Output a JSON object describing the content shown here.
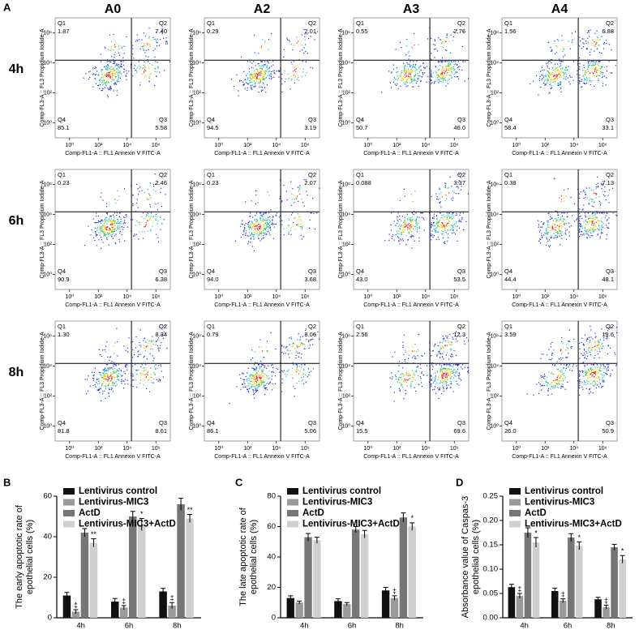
{
  "flow": {
    "label": "A",
    "columns": [
      "A0",
      "A2",
      "A3",
      "A4"
    ],
    "rows": [
      "4h",
      "6h",
      "8h"
    ],
    "x_label": "Comp-FL1-A :: FL1 Annexin V FITC-A",
    "y_label": "Comp-FL3-A :: FL3 Propidium Iodide-A",
    "log_scale": true,
    "xlim": [
      0.1,
      10000000
    ],
    "ylim": [
      0.1,
      10000000
    ],
    "xticks": [
      {
        "value": 1,
        "label": "10⁰"
      },
      {
        "value": 100,
        "label": "10²"
      },
      {
        "value": 10000,
        "label": "10⁴"
      },
      {
        "value": 1000000,
        "label": "10⁶"
      }
    ],
    "yticks": [
      {
        "value": 1,
        "label": "10⁰"
      },
      {
        "value": 100,
        "label": "10²"
      },
      {
        "value": 10000,
        "label": "10⁴"
      },
      {
        "value": 1000000,
        "label": "10⁶"
      }
    ],
    "gate": [
      20000,
      15000
    ],
    "quadrant_names": [
      "Q1",
      "Q2",
      "Q3",
      "Q4"
    ],
    "panels": [
      [
        {
          "values": [
            1.87,
            7.4,
            5.58,
            85.1
          ],
          "value_labels": [
            "1.87",
            "7.40",
            "5.58",
            "85.1"
          ]
        },
        {
          "values": [
            0.29,
            2.01,
            3.19,
            94.5
          ]
        },
        {
          "values": [
            0.55,
            2.76,
            46,
            50.7
          ],
          "value_labels": [
            "0.55",
            "2.76",
            "46.0",
            "50.7"
          ]
        },
        {
          "values": [
            1.56,
            6.88,
            33.1,
            58.4
          ]
        }
      ],
      [
        {
          "values": [
            0.23,
            2.46,
            6.38,
            90.9
          ]
        },
        {
          "values": [
            0.23,
            2.07,
            3.68,
            94
          ],
          "value_labels": [
            "0.23",
            "2.07",
            "3.68",
            "94.0"
          ]
        },
        {
          "values": [
            0.088,
            3.37,
            53.5,
            43
          ],
          "value_labels": [
            "0.088",
            "3.37",
            "53.5",
            "43.0"
          ]
        },
        {
          "values": [
            0.38,
            7.13,
            48.1,
            44.4
          ]
        }
      ],
      [
        {
          "values": [
            1.3,
            8.34,
            8.61,
            81.8
          ],
          "value_labels": [
            "1.30",
            "8.34",
            "8.61",
            "81.8"
          ]
        },
        {
          "values": [
            0.79,
            8.06,
            5.06,
            86.1
          ]
        },
        {
          "values": [
            2.56,
            12.3,
            69.6,
            15.5
          ]
        },
        {
          "values": [
            3.59,
            19.6,
            50.9,
            26
          ],
          "value_labels": [
            "3.59",
            "19.6",
            "50.9",
            "26.0"
          ]
        }
      ]
    ]
  },
  "chart_data": [
    {
      "type": "bar",
      "label": "B",
      "ylabel": [
        "The early apoptotic rate of",
        "epothelial cells (%)"
      ],
      "categories": [
        "4h",
        "6h",
        "8h"
      ],
      "ylim": [
        0,
        60
      ],
      "yticks": [
        0,
        20,
        40,
        60
      ],
      "series": [
        {
          "name": "Lentivirus control",
          "color": "#111111",
          "values": [
            11,
            8,
            13
          ],
          "errors": [
            1.5,
            1.5,
            1.5
          ],
          "annotations": [
            null,
            null,
            null
          ]
        },
        {
          "name": "Lentivirus-MIC3",
          "color": "#9a9a9a",
          "values": [
            3,
            5,
            6
          ],
          "errors": [
            1,
            1,
            1.5
          ],
          "annotations": [
            "‡",
            "‡",
            "‡"
          ]
        },
        {
          "name": "ActD",
          "color": "#767676",
          "values": [
            42,
            50,
            56
          ],
          "errors": [
            2,
            2.5,
            3
          ],
          "annotations": [
            null,
            null,
            null
          ]
        },
        {
          "name": "Lentivirus-MIC3+ActD",
          "color": "#cfcfcf",
          "values": [
            37,
            46,
            49
          ],
          "errors": [
            2,
            3,
            2
          ],
          "annotations": [
            "**",
            "*",
            "**"
          ]
        }
      ]
    },
    {
      "type": "bar",
      "label": "C",
      "ylabel": [
        "The late apoptotic rate of",
        "epothelial cells (%)"
      ],
      "categories": [
        "4h",
        "6h",
        "8h"
      ],
      "ylim": [
        0,
        80
      ],
      "yticks": [
        0,
        20,
        40,
        60,
        80
      ],
      "series": [
        {
          "name": "Lentivirus control",
          "color": "#111111",
          "values": [
            13,
            11,
            18
          ],
          "errors": [
            1.5,
            1.5,
            2
          ],
          "annotations": [
            null,
            null,
            null
          ]
        },
        {
          "name": "Lentivirus-MIC3",
          "color": "#9a9a9a",
          "values": [
            10,
            9,
            13
          ],
          "errors": [
            1,
            1,
            1.5
          ],
          "annotations": [
            null,
            null,
            "‡"
          ]
        },
        {
          "name": "ActD",
          "color": "#767676",
          "values": [
            53,
            58,
            66
          ],
          "errors": [
            2.5,
            2,
            3
          ],
          "annotations": [
            null,
            null,
            null
          ]
        },
        {
          "name": "Lentivirus-MIC3+ActD",
          "color": "#cfcfcf",
          "values": [
            51,
            55,
            60
          ],
          "errors": [
            2,
            2.5,
            2.5
          ],
          "annotations": [
            null,
            null,
            "*"
          ]
        }
      ]
    },
    {
      "type": "bar",
      "label": "D",
      "ylabel": [
        "Absorbance value of Caspas-3",
        "epothelial cells (%)"
      ],
      "categories": [
        "4h",
        "6h",
        "8h"
      ],
      "ylim": [
        0,
        0.25
      ],
      "yticks": [
        {
          "value": 0,
          "label": "0.00"
        },
        {
          "value": 0.05,
          "label": "0.05"
        },
        {
          "value": 0.1,
          "label": "0.10"
        },
        {
          "value": 0.15,
          "label": "0.15"
        },
        {
          "value": 0.2,
          "label": "0.20"
        },
        {
          "value": 0.25,
          "label": "0.25"
        }
      ],
      "series": [
        {
          "name": "Lentivirus control",
          "color": "#111111",
          "values": [
            0.063,
            0.055,
            0.038
          ],
          "errors": [
            0.006,
            0.006,
            0.004
          ],
          "annotations": [
            null,
            null,
            null
          ]
        },
        {
          "name": "Lentivirus-MIC3",
          "color": "#9a9a9a",
          "values": [
            0.045,
            0.035,
            0.022
          ],
          "errors": [
            0.005,
            0.004,
            0.004
          ],
          "annotations": [
            "‡",
            "‡",
            "‡"
          ]
        },
        {
          "name": "ActD",
          "color": "#767676",
          "values": [
            0.175,
            0.165,
            0.145
          ],
          "errors": [
            0.01,
            0.008,
            0.006
          ],
          "annotations": [
            null,
            null,
            null
          ]
        },
        {
          "name": "Lentivirus-MIC3+ActD",
          "color": "#cfcfcf",
          "values": [
            0.155,
            0.148,
            0.12
          ],
          "errors": [
            0.01,
            0.008,
            0.008
          ],
          "annotations": [
            "*",
            "*",
            "*"
          ]
        }
      ]
    }
  ]
}
